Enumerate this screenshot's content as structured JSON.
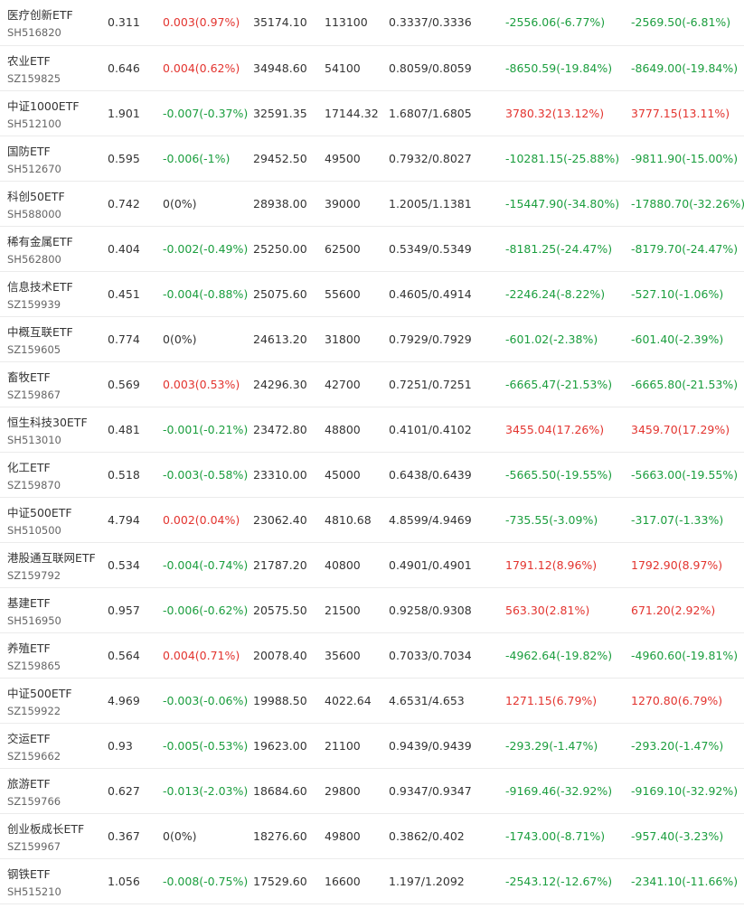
{
  "colors": {
    "up": "#e3342f",
    "down": "#1b9e3e",
    "flat": "#333333"
  },
  "rows": [
    {
      "name": "医疗创新ETF",
      "code": "SH516820",
      "price": "0.311",
      "change": "0.003(0.97%)",
      "change_dir": "up",
      "amount": "35174.10",
      "volume": "113100",
      "range": "0.3337/0.3336",
      "flow1": "-2556.06(-6.77%)",
      "flow1_dir": "down",
      "flow2": "-2569.50(-6.81%)",
      "flow2_dir": "down"
    },
    {
      "name": "农业ETF",
      "code": "SZ159825",
      "price": "0.646",
      "change": "0.004(0.62%)",
      "change_dir": "up",
      "amount": "34948.60",
      "volume": "54100",
      "range": "0.8059/0.8059",
      "flow1": "-8650.59(-19.84%)",
      "flow1_dir": "down",
      "flow2": "-8649.00(-19.84%)",
      "flow2_dir": "down"
    },
    {
      "name": "中证1000ETF",
      "code": "SH512100",
      "price": "1.901",
      "change": "-0.007(-0.37%)",
      "change_dir": "down",
      "amount": "32591.35",
      "volume": "17144.32",
      "range": "1.6807/1.6805",
      "flow1": "3780.32(13.12%)",
      "flow1_dir": "up",
      "flow2": "3777.15(13.11%)",
      "flow2_dir": "up"
    },
    {
      "name": "国防ETF",
      "code": "SH512670",
      "price": "0.595",
      "change": "-0.006(-1%)",
      "change_dir": "down",
      "amount": "29452.50",
      "volume": "49500",
      "range": "0.7932/0.8027",
      "flow1": "-10281.15(-25.88%)",
      "flow1_dir": "down",
      "flow2": "-9811.90(-15.00%)",
      "flow2_dir": "down"
    },
    {
      "name": "科创50ETF",
      "code": "SH588000",
      "price": "0.742",
      "change": "0(0%)",
      "change_dir": "flat",
      "amount": "28938.00",
      "volume": "39000",
      "range": "1.2005/1.1381",
      "flow1": "-15447.90(-34.80%)",
      "flow1_dir": "down",
      "flow2": "-17880.70(-32.26%)",
      "flow2_dir": "down"
    },
    {
      "name": "稀有金属ETF",
      "code": "SH562800",
      "price": "0.404",
      "change": "-0.002(-0.49%)",
      "change_dir": "down",
      "amount": "25250.00",
      "volume": "62500",
      "range": "0.5349/0.5349",
      "flow1": "-8181.25(-24.47%)",
      "flow1_dir": "down",
      "flow2": "-8179.70(-24.47%)",
      "flow2_dir": "down"
    },
    {
      "name": "信息技术ETF",
      "code": "SZ159939",
      "price": "0.451",
      "change": "-0.004(-0.88%)",
      "change_dir": "down",
      "amount": "25075.60",
      "volume": "55600",
      "range": "0.4605/0.4914",
      "flow1": "-2246.24(-8.22%)",
      "flow1_dir": "down",
      "flow2": "-527.10(-1.06%)",
      "flow2_dir": "down"
    },
    {
      "name": "中概互联ETF",
      "code": "SZ159605",
      "price": "0.774",
      "change": "0(0%)",
      "change_dir": "flat",
      "amount": "24613.20",
      "volume": "31800",
      "range": "0.7929/0.7929",
      "flow1": "-601.02(-2.38%)",
      "flow1_dir": "down",
      "flow2": "-601.40(-2.39%)",
      "flow2_dir": "down"
    },
    {
      "name": "畜牧ETF",
      "code": "SZ159867",
      "price": "0.569",
      "change": "0.003(0.53%)",
      "change_dir": "up",
      "amount": "24296.30",
      "volume": "42700",
      "range": "0.7251/0.7251",
      "flow1": "-6665.47(-21.53%)",
      "flow1_dir": "down",
      "flow2": "-6665.80(-21.53%)",
      "flow2_dir": "down"
    },
    {
      "name": "恒生科技30ETF",
      "code": "SH513010",
      "price": "0.481",
      "change": "-0.001(-0.21%)",
      "change_dir": "down",
      "amount": "23472.80",
      "volume": "48800",
      "range": "0.4101/0.4102",
      "flow1": "3455.04(17.26%)",
      "flow1_dir": "up",
      "flow2": "3459.70(17.29%)",
      "flow2_dir": "up"
    },
    {
      "name": "化工ETF",
      "code": "SZ159870",
      "price": "0.518",
      "change": "-0.003(-0.58%)",
      "change_dir": "down",
      "amount": "23310.00",
      "volume": "45000",
      "range": "0.6438/0.6439",
      "flow1": "-5665.50(-19.55%)",
      "flow1_dir": "down",
      "flow2": "-5663.00(-19.55%)",
      "flow2_dir": "down"
    },
    {
      "name": "中证500ETF",
      "code": "SH510500",
      "price": "4.794",
      "change": "0.002(0.04%)",
      "change_dir": "up",
      "amount": "23062.40",
      "volume": "4810.68",
      "range": "4.8599/4.9469",
      "flow1": "-735.55(-3.09%)",
      "flow1_dir": "down",
      "flow2": "-317.07(-1.33%)",
      "flow2_dir": "down"
    },
    {
      "name": "港股通互联网ETF",
      "code": "SZ159792",
      "price": "0.534",
      "change": "-0.004(-0.74%)",
      "change_dir": "down",
      "amount": "21787.20",
      "volume": "40800",
      "range": "0.4901/0.4901",
      "flow1": "1791.12(8.96%)",
      "flow1_dir": "up",
      "flow2": "1792.90(8.97%)",
      "flow2_dir": "up"
    },
    {
      "name": "基建ETF",
      "code": "SH516950",
      "price": "0.957",
      "change": "-0.006(-0.62%)",
      "change_dir": "down",
      "amount": "20575.50",
      "volume": "21500",
      "range": "0.9258/0.9308",
      "flow1": "563.30(2.81%)",
      "flow1_dir": "up",
      "flow2": "671.20(2.92%)",
      "flow2_dir": "up"
    },
    {
      "name": "养殖ETF",
      "code": "SZ159865",
      "price": "0.564",
      "change": "0.004(0.71%)",
      "change_dir": "up",
      "amount": "20078.40",
      "volume": "35600",
      "range": "0.7033/0.7034",
      "flow1": "-4962.64(-19.82%)",
      "flow1_dir": "down",
      "flow2": "-4960.60(-19.81%)",
      "flow2_dir": "down"
    },
    {
      "name": "中证500ETF",
      "code": "SZ159922",
      "price": "4.969",
      "change": "-0.003(-0.06%)",
      "change_dir": "down",
      "amount": "19988.50",
      "volume": "4022.64",
      "range": "4.6531/4.653",
      "flow1": "1271.15(6.79%)",
      "flow1_dir": "up",
      "flow2": "1270.80(6.79%)",
      "flow2_dir": "up"
    },
    {
      "name": "交运ETF",
      "code": "SZ159662",
      "price": "0.93",
      "change": "-0.005(-0.53%)",
      "change_dir": "down",
      "amount": "19623.00",
      "volume": "21100",
      "range": "0.9439/0.9439",
      "flow1": "-293.29(-1.47%)",
      "flow1_dir": "down",
      "flow2": "-293.20(-1.47%)",
      "flow2_dir": "down"
    },
    {
      "name": "旅游ETF",
      "code": "SZ159766",
      "price": "0.627",
      "change": "-0.013(-2.03%)",
      "change_dir": "down",
      "amount": "18684.60",
      "volume": "29800",
      "range": "0.9347/0.9347",
      "flow1": "-9169.46(-32.92%)",
      "flow1_dir": "down",
      "flow2": "-9169.10(-32.92%)",
      "flow2_dir": "down"
    },
    {
      "name": "创业板成长ETF",
      "code": "SZ159967",
      "price": "0.367",
      "change": "0(0%)",
      "change_dir": "flat",
      "amount": "18276.60",
      "volume": "49800",
      "range": "0.3862/0.402",
      "flow1": "-1743.00(-8.71%)",
      "flow1_dir": "down",
      "flow2": "-957.40(-3.23%)",
      "flow2_dir": "down"
    },
    {
      "name": "钢铁ETF",
      "code": "SH515210",
      "price": "1.056",
      "change": "-0.008(-0.75%)",
      "change_dir": "down",
      "amount": "17529.60",
      "volume": "16600",
      "range": "1.197/1.2092",
      "flow1": "-2543.12(-12.67%)",
      "flow1_dir": "down",
      "flow2": "-2341.10(-11.66%)",
      "flow2_dir": "down"
    }
  ]
}
